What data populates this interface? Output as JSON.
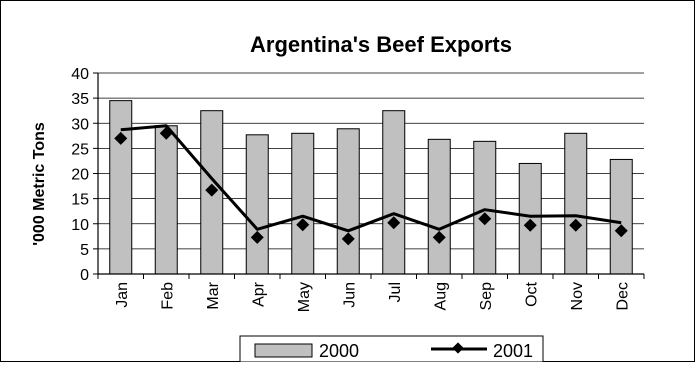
{
  "chart_data": {
    "type": "bar",
    "title": "Argentina's Beef Exports",
    "ylabel": "'000 Metric Tons",
    "xlabel": "",
    "ylim": [
      0,
      40
    ],
    "yticks": [
      0,
      5,
      10,
      15,
      20,
      25,
      30,
      35,
      40
    ],
    "grid": true,
    "legend_position": "bottom",
    "categories": [
      "Jan",
      "Feb",
      "Mar",
      "Apr",
      "May",
      "Jun",
      "Jul",
      "Aug",
      "Sep",
      "Oct",
      "Nov",
      "Dec"
    ],
    "series": [
      {
        "name": "2000",
        "type": "bar",
        "color": "#c0c0c0",
        "values": [
          34.5,
          29.5,
          32.5,
          27.7,
          28.0,
          28.9,
          32.5,
          26.8,
          26.4,
          22.0,
          28.0,
          22.8
        ]
      },
      {
        "name": "2001",
        "type": "line",
        "color": "#000000",
        "line_values": [
          28.7,
          29.5,
          19.0,
          8.9,
          11.5,
          8.6,
          12.0,
          8.9,
          12.8,
          11.5,
          11.6,
          10.2
        ],
        "marker_values": [
          27.0,
          28.0,
          16.7,
          7.3,
          9.8,
          7.0,
          10.2,
          7.3,
          11.0,
          9.7,
          9.7,
          8.6
        ]
      }
    ]
  }
}
